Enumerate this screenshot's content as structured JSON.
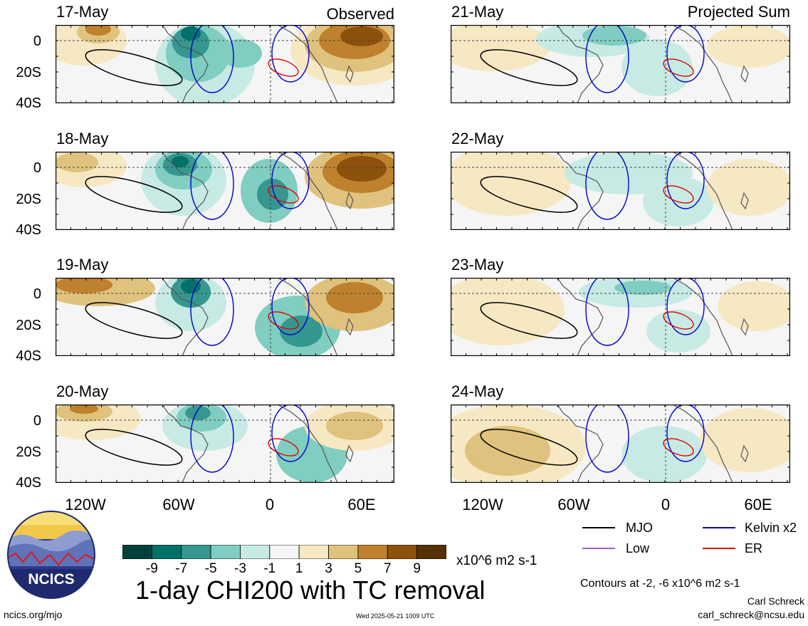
{
  "header": {
    "observed_tag": "Observed",
    "projected_tag": "Projected Sum"
  },
  "panels": {
    "observed": [
      {
        "date": "17-May"
      },
      {
        "date": "18-May"
      },
      {
        "date": "19-May"
      },
      {
        "date": "20-May"
      }
    ],
    "projected": [
      {
        "date": "21-May"
      },
      {
        "date": "22-May"
      },
      {
        "date": "23-May"
      },
      {
        "date": "24-May"
      }
    ]
  },
  "axes": {
    "lat_labels": [
      "0",
      "20S",
      "40S"
    ],
    "lon_labels": [
      "120W",
      "60W",
      "0",
      "60E"
    ]
  },
  "colorbar": {
    "ticks": [
      "-9",
      "-7",
      "-5",
      "-3",
      "-1",
      "1",
      "3",
      "5",
      "7",
      "9"
    ],
    "units": "x10^6 m2 s-1",
    "colors": [
      "#01403a",
      "#02716a",
      "#35978f",
      "#80cdc1",
      "#c7eae5",
      "#f5f5f5",
      "#f6e8c3",
      "#dfc27d",
      "#bf812d",
      "#8c510a",
      "#543005"
    ]
  },
  "legend": {
    "mjo": {
      "label": "MJO",
      "color": "#000000"
    },
    "kelvin": {
      "label": "Kelvin x2",
      "color": "#0000cc"
    },
    "low": {
      "label": "Low",
      "color": "#9a5fd0"
    },
    "er": {
      "label": "ER",
      "color": "#dd0000"
    }
  },
  "footer": {
    "title": "1-day CHI200 with TC removal",
    "contours_note": "Contours at -2, -6 x10^6 m2 s-1",
    "author": "Carl Schreck",
    "email": "carl_schreck@ncsu.edu",
    "site": "ncics.org/mjo",
    "timestamp": "Wed 2025-05-21 1009 UTC",
    "logo_text": "NCICS"
  }
}
